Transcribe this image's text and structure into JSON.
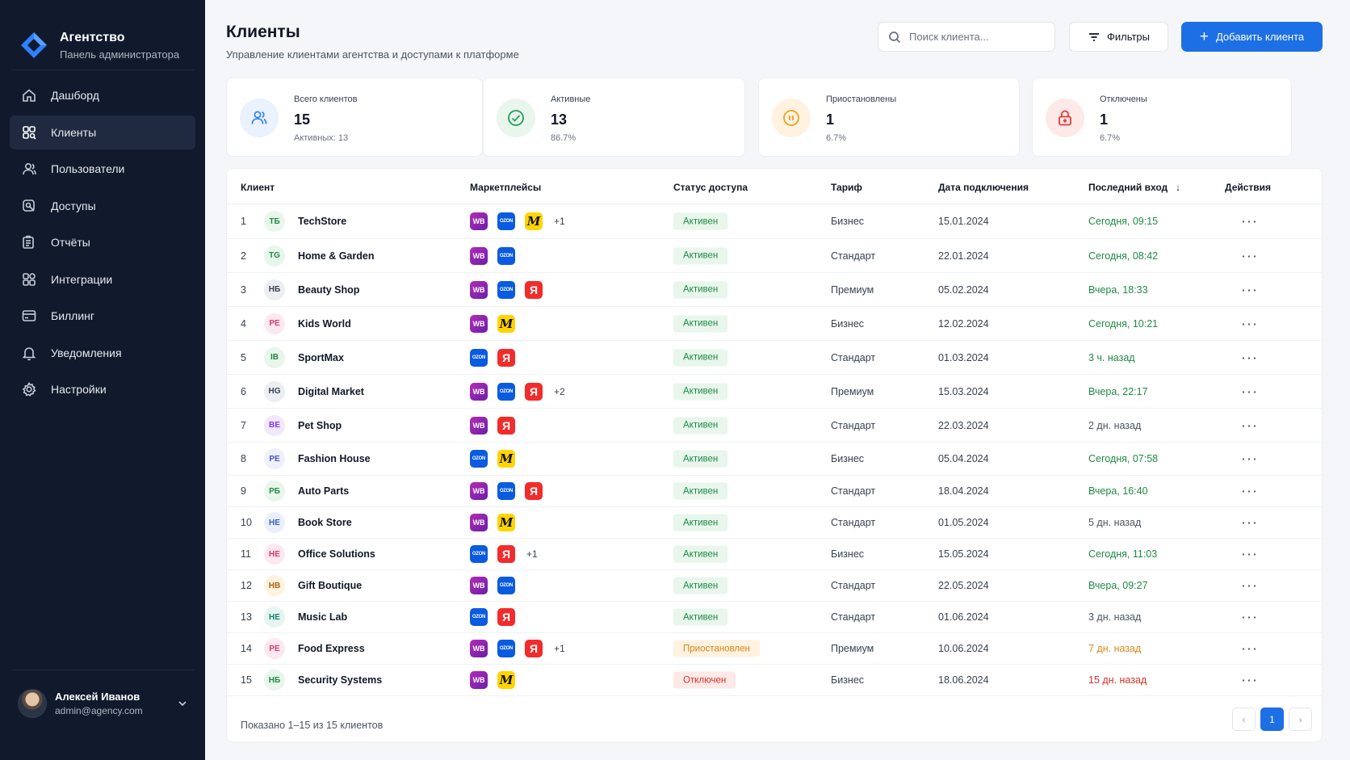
{
  "brand": {
    "title": "Агентство",
    "subtitle": "Панель администратора"
  },
  "nav": [
    {
      "label": "Дашборд",
      "icon": "home-icon",
      "active": false
    },
    {
      "label": "Клиенты",
      "icon": "clients-icon",
      "active": true
    },
    {
      "label": "Пользователи",
      "icon": "users-icon",
      "active": false
    },
    {
      "label": "Доступы",
      "icon": "access-icon",
      "active": false
    },
    {
      "label": "Отчёты",
      "icon": "reports-icon",
      "active": false
    },
    {
      "label": "Интеграции",
      "icon": "integrations-icon",
      "active": false
    },
    {
      "label": "Биллинг",
      "icon": "billing-icon",
      "active": false
    },
    {
      "label": "Уведомления",
      "icon": "bell-icon",
      "active": false
    },
    {
      "label": "Настройки",
      "icon": "gear-icon",
      "active": false
    }
  ],
  "user": {
    "name": "Алексей Иванов",
    "email": "admin@agency.com"
  },
  "header": {
    "title": "Клиенты",
    "subtitle": "Управление клиентами агентства и доступами к платформе",
    "search_placeholder": "Поиск клиента...",
    "filters_label": "Фильтры",
    "add_label": "Добавить клиента"
  },
  "stats": [
    {
      "label": "Всего клиентов",
      "value": "15",
      "sub": "Активных: 13",
      "icon": "users-icon",
      "color": "#3b82f6",
      "bg": "#eaf2fe"
    },
    {
      "label": "Активные",
      "value": "13",
      "sub": "86.7%",
      "icon": "check-circle-icon",
      "color": "#22a05a",
      "bg": "#e8f6ec"
    },
    {
      "label": "Приостановлены",
      "value": "1",
      "sub": "6.7%",
      "icon": "pause-circle-icon",
      "color": "#f0a020",
      "bg": "#fff3df"
    },
    {
      "label": "Отключены",
      "value": "1",
      "sub": "6.7%",
      "icon": "lock-icon",
      "color": "#e53935",
      "bg": "#fde9e8"
    }
  ],
  "table": {
    "columns": {
      "client": "Клиент",
      "marketplaces": "Маркетплейсы",
      "status": "Статус доступа",
      "tariff": "Тариф",
      "date": "Дата подключения",
      "last": "Последний вход",
      "actions": "Действия"
    },
    "rows": [
      {
        "n": "1",
        "initials": "ТБ",
        "av_bg": "#e8f6ec",
        "av_fg": "#1f8a45",
        "name": "TechStore",
        "mps": [
          "WB",
          "OZON",
          "M"
        ],
        "more": "+1",
        "status": "Активен",
        "status_kind": "ok",
        "tariff": "Бизнес",
        "date": "15.01.2024",
        "last": "Сегодня, 09:15",
        "last_kind": "green"
      },
      {
        "n": "2",
        "initials": "TG",
        "av_bg": "#e8f6ec",
        "av_fg": "#1f8a45",
        "name": "Home & Garden",
        "mps": [
          "WB",
          "OZON"
        ],
        "more": "",
        "status": "Активен",
        "status_kind": "ok",
        "tariff": "Стандарт",
        "date": "22.01.2024",
        "last": "Сегодня, 08:42",
        "last_kind": "green"
      },
      {
        "n": "3",
        "initials": "НБ",
        "av_bg": "#eceef2",
        "av_fg": "#374151",
        "name": "Beauty Shop",
        "mps": [
          "WB",
          "OZON",
          "Я"
        ],
        "more": "",
        "status": "Активен",
        "status_kind": "ok",
        "tariff": "Премиум",
        "date": "05.02.2024",
        "last": "Вчера, 18:33",
        "last_kind": "green"
      },
      {
        "n": "4",
        "initials": "РЕ",
        "av_bg": "#fde8ef",
        "av_fg": "#d63b6b",
        "name": "Kids World",
        "mps": [
          "WB",
          "M"
        ],
        "more": "",
        "status": "Активен",
        "status_kind": "ok",
        "tariff": "Бизнес",
        "date": "12.02.2024",
        "last": "Сегодня, 10:21",
        "last_kind": "green"
      },
      {
        "n": "5",
        "initials": "ІВ",
        "av_bg": "#e8f6ec",
        "av_fg": "#1f8a45",
        "name": "SportMax",
        "mps": [
          "OZON",
          "Я"
        ],
        "more": "",
        "status": "Активен",
        "status_kind": "ok",
        "tariff": "Стандарт",
        "date": "01.03.2024",
        "last": "3 ч. назад",
        "last_kind": "green"
      },
      {
        "n": "6",
        "initials": "НG",
        "av_bg": "#eceef2",
        "av_fg": "#374151",
        "name": "Digital Market",
        "mps": [
          "WB",
          "OZON",
          "Я"
        ],
        "more": "+2",
        "status": "Активен",
        "status_kind": "ok",
        "tariff": "Премиум",
        "date": "15.03.2024",
        "last": "Вчера, 22:17",
        "last_kind": "green"
      },
      {
        "n": "7",
        "initials": "ВЕ",
        "av_bg": "#f1e8fc",
        "av_fg": "#7c3aed",
        "name": "Pet Shop",
        "mps": [
          "WB",
          "Я"
        ],
        "more": "",
        "status": "Активен",
        "status_kind": "ok",
        "tariff": "Стандарт",
        "date": "22.03.2024",
        "last": "2 дн. назад",
        "last_kind": "gray"
      },
      {
        "n": "8",
        "initials": "РЕ",
        "av_bg": "#eef0fb",
        "av_fg": "#4b55c0",
        "name": "Fashion House",
        "mps": [
          "OZON",
          "M"
        ],
        "more": "",
        "status": "Активен",
        "status_kind": "ok",
        "tariff": "Бизнес",
        "date": "05.04.2024",
        "last": "Сегодня, 07:58",
        "last_kind": "green"
      },
      {
        "n": "9",
        "initials": "РБ",
        "av_bg": "#e8f6ec",
        "av_fg": "#1f8a45",
        "name": "Auto Parts",
        "mps": [
          "WB",
          "OZON",
          "Я"
        ],
        "more": "",
        "status": "Активен",
        "status_kind": "ok",
        "tariff": "Стандарт",
        "date": "18.04.2024",
        "last": "Вчера, 16:40",
        "last_kind": "green"
      },
      {
        "n": "10",
        "initials": "НЕ",
        "av_bg": "#eaf0fb",
        "av_fg": "#3b5bbf",
        "name": "Book Store",
        "mps": [
          "WB",
          "M"
        ],
        "more": "",
        "status": "Активен",
        "status_kind": "ok",
        "tariff": "Стандарт",
        "date": "01.05.2024",
        "last": "5 дн. назад",
        "last_kind": "gray"
      },
      {
        "n": "11",
        "initials": "НЕ",
        "av_bg": "#fde8ef",
        "av_fg": "#d63b6b",
        "name": "Office Solutions",
        "mps": [
          "OZON",
          "Я"
        ],
        "more": "+1",
        "status": "Активен",
        "status_kind": "ok",
        "tariff": "Бизнес",
        "date": "15.05.2024",
        "last": "Сегодня, 11:03",
        "last_kind": "green"
      },
      {
        "n": "12",
        "initials": "НВ",
        "av_bg": "#fff3df",
        "av_fg": "#a5650d",
        "name": "Gift Boutique",
        "mps": [
          "WB",
          "OZON"
        ],
        "more": "",
        "status": "Активен",
        "status_kind": "ok",
        "tariff": "Стандарт",
        "date": "22.05.2024",
        "last": "Вчера, 09:27",
        "last_kind": "green"
      },
      {
        "n": "13",
        "initials": "НЕ",
        "av_bg": "#e6f5f3",
        "av_fg": "#16836f",
        "name": "Music Lab",
        "mps": [
          "OZON",
          "Я"
        ],
        "more": "",
        "status": "Активен",
        "status_kind": "ok",
        "tariff": "Стандарт",
        "date": "01.06.2024",
        "last": "3 дн. назад",
        "last_kind": "gray"
      },
      {
        "n": "14",
        "initials": "РЕ",
        "av_bg": "#fde8ef",
        "av_fg": "#d63b6b",
        "name": "Food Express",
        "mps": [
          "WB",
          "OZON",
          "Я"
        ],
        "more": "+1",
        "status": "Приостановлен",
        "status_kind": "pause",
        "tariff": "Премиум",
        "date": "10.06.2024",
        "last": "7 дн. назад",
        "last_kind": "orange"
      },
      {
        "n": "15",
        "initials": "НБ",
        "av_bg": "#e8f6ec",
        "av_fg": "#1f8a45",
        "name": "Security Systems",
        "mps": [
          "WB",
          "M"
        ],
        "more": "",
        "status": "Отключен",
        "status_kind": "off",
        "tariff": "Бизнес",
        "date": "18.06.2024",
        "last": "15 дн. назад",
        "last_kind": "red"
      }
    ],
    "footer": "Показано 1–15 из 15 клиентов",
    "page": "1",
    "prev_label": "‹",
    "next_label": "›",
    "actions_glyph": "···",
    "sort_glyph": "↓"
  }
}
